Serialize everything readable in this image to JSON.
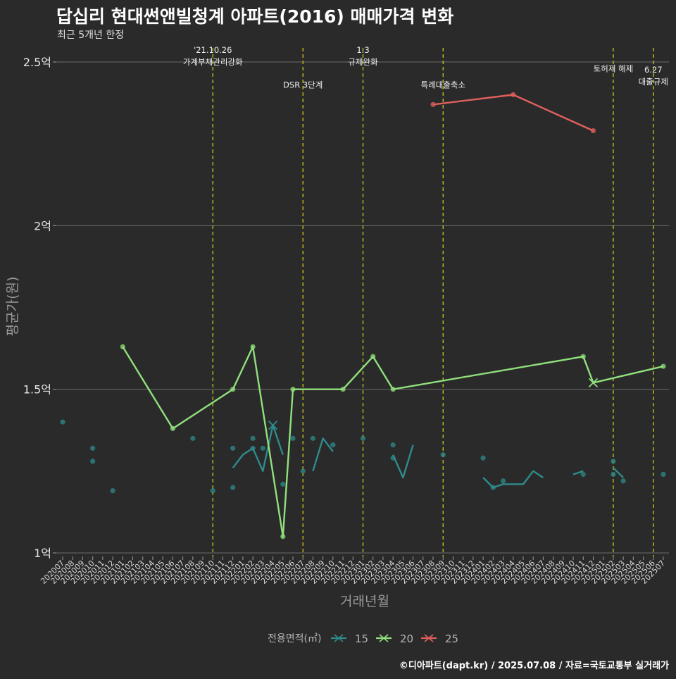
{
  "chart_data": {
    "type": "line",
    "title": "답십리 현대썬앤빌청계 아파트(2016) 매매가격 변화",
    "subtitle": "최근 5개년 한정",
    "xlabel": "거래년월",
    "ylabel": "평균가(원)",
    "legend_title": "전용면적(㎡)",
    "caption": "©디아파트(dapt.kr) / 2025.07.08 / 자료=국토교통부 실거래가",
    "ylim": [
      0.98,
      2.56
    ],
    "y_ticks": [
      {
        "value": 1.0,
        "label": "1억"
      },
      {
        "value": 1.5,
        "label": "1.5억"
      },
      {
        "value": 2.0,
        "label": "2억"
      },
      {
        "value": 2.5,
        "label": "2.5억"
      }
    ],
    "x_categories": [
      "202007",
      "202008",
      "202009",
      "202010",
      "202011",
      "202012",
      "202101",
      "202102",
      "202103",
      "202104",
      "202105",
      "202106",
      "202107",
      "202108",
      "202109",
      "202110",
      "202111",
      "202112",
      "202201",
      "202202",
      "202203",
      "202204",
      "202205",
      "202206",
      "202207",
      "202208",
      "202209",
      "202210",
      "202211",
      "202212",
      "202301",
      "202302",
      "202303",
      "202304",
      "202305",
      "202306",
      "202307",
      "202308",
      "202309",
      "202310",
      "202311",
      "202312",
      "202401",
      "202402",
      "202403",
      "202404",
      "202405",
      "202406",
      "202407",
      "202408",
      "202409",
      "202410",
      "202411",
      "202412",
      "202501",
      "202502",
      "202503",
      "202504",
      "202505",
      "202506",
      "202507"
    ],
    "events": [
      {
        "x": 15.0,
        "lines": [
          "'21.10.26",
          "가계부채관리강화"
        ],
        "value_pos": 2.5
      },
      {
        "x": 24.0,
        "lines": [
          "DSR 3단계"
        ],
        "value_pos": 2.43
      },
      {
        "x": 30.0,
        "lines": [
          "1.3",
          "규제완화"
        ],
        "value_pos": 2.5
      },
      {
        "x": 38.0,
        "lines": [
          "특례대출축소"
        ],
        "value_pos": 2.43
      },
      {
        "x": 55.0,
        "lines": [
          "토허제 해제"
        ],
        "value_pos": 2.48
      },
      {
        "x": 59.0,
        "lines": [
          "6.27",
          "대출규제"
        ],
        "value_pos": 2.44
      }
    ],
    "series": [
      {
        "name": "15",
        "color": "#2e8b8b",
        "points": [
          [
            0,
            1.4
          ],
          [
            3,
            1.32
          ],
          [
            3,
            1.28
          ],
          [
            5,
            1.19
          ],
          [
            13,
            1.35
          ],
          [
            15,
            1.19
          ],
          [
            17,
            1.32
          ],
          [
            17,
            1.2
          ],
          [
            19,
            1.32
          ],
          [
            19,
            1.35
          ],
          [
            20,
            1.32
          ],
          [
            22,
            1.21
          ],
          [
            23,
            1.35
          ],
          [
            24,
            1.25
          ],
          [
            25,
            1.35
          ],
          [
            27,
            1.33
          ],
          [
            30,
            1.35
          ],
          [
            33,
            1.33
          ],
          [
            33,
            1.29
          ],
          [
            38,
            1.3
          ],
          [
            42,
            1.29
          ],
          [
            43,
            1.2
          ],
          [
            44,
            1.22
          ],
          [
            52,
            1.24
          ],
          [
            55,
            1.28
          ],
          [
            55,
            1.24
          ],
          [
            56,
            1.22
          ],
          [
            60,
            1.24
          ]
        ],
        "lines": [
          [
            [
              17,
              1.26
            ],
            [
              18,
              1.3
            ],
            [
              19,
              1.32
            ],
            [
              20,
              1.25
            ],
            [
              21,
              1.39
            ],
            [
              22,
              1.3
            ]
          ],
          [
            [
              25,
              1.25
            ],
            [
              26,
              1.35
            ],
            [
              27,
              1.31
            ]
          ],
          [
            [
              33,
              1.3
            ],
            [
              34,
              1.23
            ],
            [
              35,
              1.33
            ]
          ],
          [
            [
              42,
              1.23
            ],
            [
              43,
              1.2
            ],
            [
              44,
              1.21
            ],
            [
              45,
              1.21
            ],
            [
              46,
              1.21
            ],
            [
              47,
              1.25
            ],
            [
              48,
              1.23
            ]
          ],
          [
            [
              51,
              1.24
            ],
            [
              52,
              1.25
            ]
          ],
          [
            [
              55,
              1.26
            ],
            [
              56,
              1.23
            ]
          ]
        ],
        "cross_points": [
          [
            21,
            1.39
          ]
        ]
      },
      {
        "name": "20",
        "color": "#8fe07c",
        "points": [
          [
            6,
            1.63
          ],
          [
            11,
            1.38
          ],
          [
            17,
            1.5
          ],
          [
            19,
            1.63
          ],
          [
            22,
            1.05
          ],
          [
            23,
            1.5
          ],
          [
            28,
            1.5
          ],
          [
            31,
            1.6
          ],
          [
            33,
            1.5
          ],
          [
            52,
            1.6
          ],
          [
            60,
            1.57
          ]
        ],
        "lines": [
          [
            [
              6,
              1.63
            ],
            [
              11,
              1.38
            ],
            [
              17,
              1.5
            ],
            [
              19,
              1.63
            ],
            [
              22,
              1.05
            ],
            [
              23,
              1.5
            ],
            [
              28,
              1.5
            ],
            [
              31,
              1.6
            ],
            [
              33,
              1.5
            ],
            [
              52,
              1.6
            ],
            [
              53,
              1.52
            ],
            [
              60,
              1.57
            ]
          ]
        ],
        "cross_points": [
          [
            53,
            1.52
          ]
        ]
      },
      {
        "name": "25",
        "color": "#e0605e",
        "points": [
          [
            37,
            2.37
          ],
          [
            45,
            2.4
          ],
          [
            53,
            2.29
          ]
        ],
        "lines": [
          [
            [
              37,
              2.37
            ],
            [
              45,
              2.4
            ],
            [
              53,
              2.29
            ]
          ]
        ],
        "cross_points": []
      }
    ]
  }
}
